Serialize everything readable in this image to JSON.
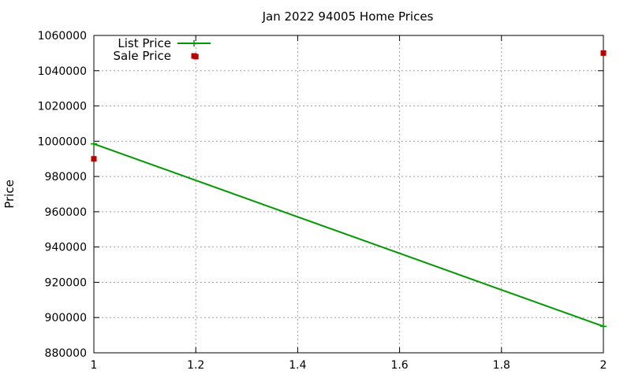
{
  "chart_data": {
    "type": "line",
    "title": "Jan 2022 94005 Home Prices",
    "xlabel": "",
    "ylabel": "Price",
    "xlim": [
      1,
      2
    ],
    "ylim": [
      880000,
      1060000
    ],
    "x_ticks": [
      "1",
      "1.2",
      "1.4",
      "1.6",
      "1.8",
      "2"
    ],
    "y_ticks": [
      "880000",
      "900000",
      "920000",
      "940000",
      "960000",
      "980000",
      "1000000",
      "1020000",
      "1040000",
      "1060000"
    ],
    "grid": true,
    "legend_position": "top-left",
    "series": [
      {
        "name": "List Price",
        "style": "line+cross",
        "color": "#009900",
        "points": [
          {
            "x": 1,
            "y": 998500
          },
          {
            "x": 2,
            "y": 895000
          }
        ]
      },
      {
        "name": "Sale Price",
        "style": "square-points",
        "color": "#bb0000",
        "points": [
          {
            "x": 1,
            "y": 990000
          },
          {
            "x": 1.2,
            "y": 1048000
          },
          {
            "x": 2,
            "y": 1050000
          }
        ]
      }
    ]
  }
}
